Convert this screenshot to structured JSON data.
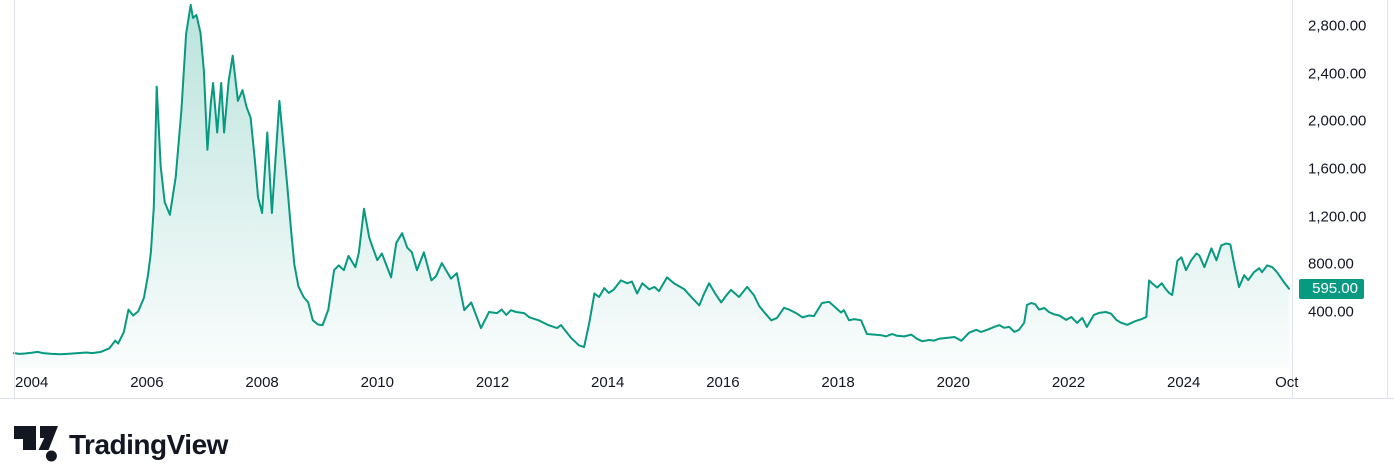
{
  "chart_data": {
    "type": "area",
    "title": "",
    "xlabel": "",
    "ylabel": "",
    "legend": "none",
    "grid": "off",
    "line_color": "#089981",
    "fill_top": "rgba(8,153,129,0.28)",
    "fill_bottom": "rgba(8,153,129,0.02)",
    "x_domain": [
      2003.45,
      2025.88
    ],
    "y_domain": [
      -70,
      3016
    ],
    "x_ticks": [
      {
        "label": "2004",
        "t": 2004
      },
      {
        "label": "2006",
        "t": 2006
      },
      {
        "label": "2008",
        "t": 2008
      },
      {
        "label": "2010",
        "t": 2010
      },
      {
        "label": "2012",
        "t": 2012
      },
      {
        "label": "2014",
        "t": 2014
      },
      {
        "label": "2016",
        "t": 2016
      },
      {
        "label": "2018",
        "t": 2018
      },
      {
        "label": "2020",
        "t": 2020
      },
      {
        "label": "2022",
        "t": 2022
      },
      {
        "label": "2024",
        "t": 2024
      },
      {
        "label": "Oct",
        "t": 2025.79
      }
    ],
    "y_ticks": [
      {
        "label": "2,800.00",
        "v": 2800
      },
      {
        "label": "2,400.00",
        "v": 2400
      },
      {
        "label": "2,000.00",
        "v": 2000
      },
      {
        "label": "1,600.00",
        "v": 1600
      },
      {
        "label": "1,200.00",
        "v": 1200
      },
      {
        "label": "800.00",
        "v": 800
      },
      {
        "label": "400.00",
        "v": 400
      }
    ],
    "last_price": 595,
    "last_price_label": "595.00",
    "series": [
      {
        "name": "price",
        "points": [
          [
            2003.69,
            55
          ],
          [
            2003.79,
            48
          ],
          [
            2003.88,
            52
          ],
          [
            2004.0,
            58
          ],
          [
            2004.1,
            65
          ],
          [
            2004.2,
            55
          ],
          [
            2004.35,
            48
          ],
          [
            2004.5,
            45
          ],
          [
            2004.65,
            50
          ],
          [
            2004.8,
            55
          ],
          [
            2004.95,
            60
          ],
          [
            2005.05,
            55
          ],
          [
            2005.2,
            65
          ],
          [
            2005.35,
            95
          ],
          [
            2005.45,
            160
          ],
          [
            2005.5,
            135
          ],
          [
            2005.6,
            230
          ],
          [
            2005.68,
            420
          ],
          [
            2005.76,
            370
          ],
          [
            2005.85,
            405
          ],
          [
            2005.95,
            520
          ],
          [
            2006.02,
            710
          ],
          [
            2006.07,
            900
          ],
          [
            2006.12,
            1280
          ],
          [
            2006.17,
            2290
          ],
          [
            2006.24,
            1620
          ],
          [
            2006.31,
            1320
          ],
          [
            2006.4,
            1215
          ],
          [
            2006.5,
            1530
          ],
          [
            2006.6,
            2090
          ],
          [
            2006.68,
            2730
          ],
          [
            2006.76,
            2975
          ],
          [
            2006.8,
            2865
          ],
          [
            2006.86,
            2890
          ],
          [
            2006.93,
            2740
          ],
          [
            2006.99,
            2420
          ],
          [
            2007.05,
            1760
          ],
          [
            2007.11,
            2150
          ],
          [
            2007.15,
            2320
          ],
          [
            2007.22,
            1905
          ],
          [
            2007.29,
            2320
          ],
          [
            2007.34,
            1905
          ],
          [
            2007.42,
            2340
          ],
          [
            2007.49,
            2550
          ],
          [
            2007.58,
            2170
          ],
          [
            2007.66,
            2260
          ],
          [
            2007.73,
            2120
          ],
          [
            2007.8,
            2030
          ],
          [
            2007.87,
            1695
          ],
          [
            2007.93,
            1360
          ],
          [
            2008.0,
            1230
          ],
          [
            2008.09,
            1905
          ],
          [
            2008.17,
            1230
          ],
          [
            2008.3,
            2170
          ],
          [
            2008.38,
            1755
          ],
          [
            2008.44,
            1445
          ],
          [
            2008.5,
            1100
          ],
          [
            2008.56,
            800
          ],
          [
            2008.63,
            615
          ],
          [
            2008.72,
            525
          ],
          [
            2008.8,
            480
          ],
          [
            2008.88,
            330
          ],
          [
            2008.97,
            295
          ],
          [
            2009.05,
            290
          ],
          [
            2009.15,
            420
          ],
          [
            2009.25,
            750
          ],
          [
            2009.33,
            790
          ],
          [
            2009.42,
            750
          ],
          [
            2009.5,
            870
          ],
          [
            2009.62,
            775
          ],
          [
            2009.68,
            900
          ],
          [
            2009.77,
            1265
          ],
          [
            2009.86,
            1025
          ],
          [
            2009.92,
            940
          ],
          [
            2010.0,
            835
          ],
          [
            2010.08,
            890
          ],
          [
            2010.24,
            690
          ],
          [
            2010.33,
            980
          ],
          [
            2010.43,
            1060
          ],
          [
            2010.52,
            940
          ],
          [
            2010.6,
            900
          ],
          [
            2010.69,
            750
          ],
          [
            2010.81,
            900
          ],
          [
            2010.94,
            665
          ],
          [
            2011.02,
            700
          ],
          [
            2011.12,
            810
          ],
          [
            2011.28,
            680
          ],
          [
            2011.38,
            725
          ],
          [
            2011.51,
            415
          ],
          [
            2011.63,
            480
          ],
          [
            2011.8,
            265
          ],
          [
            2011.94,
            400
          ],
          [
            2012.08,
            390
          ],
          [
            2012.16,
            420
          ],
          [
            2012.24,
            375
          ],
          [
            2012.32,
            415
          ],
          [
            2012.41,
            400
          ],
          [
            2012.55,
            390
          ],
          [
            2012.64,
            355
          ],
          [
            2012.8,
            330
          ],
          [
            2012.97,
            290
          ],
          [
            2013.12,
            265
          ],
          [
            2013.19,
            290
          ],
          [
            2013.37,
            180
          ],
          [
            2013.5,
            120
          ],
          [
            2013.59,
            105
          ],
          [
            2013.68,
            310
          ],
          [
            2013.77,
            555
          ],
          [
            2013.85,
            525
          ],
          [
            2013.94,
            600
          ],
          [
            2014.02,
            560
          ],
          [
            2014.11,
            590
          ],
          [
            2014.23,
            665
          ],
          [
            2014.34,
            640
          ],
          [
            2014.42,
            655
          ],
          [
            2014.51,
            555
          ],
          [
            2014.6,
            640
          ],
          [
            2014.72,
            590
          ],
          [
            2014.81,
            610
          ],
          [
            2014.89,
            575
          ],
          [
            2015.03,
            690
          ],
          [
            2015.15,
            640
          ],
          [
            2015.33,
            590
          ],
          [
            2015.46,
            520
          ],
          [
            2015.59,
            455
          ],
          [
            2015.67,
            550
          ],
          [
            2015.76,
            640
          ],
          [
            2015.86,
            560
          ],
          [
            2015.97,
            480
          ],
          [
            2016.06,
            540
          ],
          [
            2016.14,
            585
          ],
          [
            2016.28,
            525
          ],
          [
            2016.42,
            610
          ],
          [
            2016.54,
            540
          ],
          [
            2016.63,
            450
          ],
          [
            2016.73,
            390
          ],
          [
            2016.84,
            330
          ],
          [
            2016.94,
            350
          ],
          [
            2017.06,
            435
          ],
          [
            2017.15,
            420
          ],
          [
            2017.27,
            390
          ],
          [
            2017.38,
            355
          ],
          [
            2017.5,
            370
          ],
          [
            2017.58,
            365
          ],
          [
            2017.72,
            475
          ],
          [
            2017.84,
            485
          ],
          [
            2017.95,
            440
          ],
          [
            2018.05,
            395
          ],
          [
            2018.1,
            415
          ],
          [
            2018.19,
            330
          ],
          [
            2018.28,
            340
          ],
          [
            2018.4,
            330
          ],
          [
            2018.5,
            215
          ],
          [
            2018.63,
            210
          ],
          [
            2018.75,
            205
          ],
          [
            2018.83,
            195
          ],
          [
            2018.94,
            215
          ],
          [
            2019.02,
            200
          ],
          [
            2019.15,
            195
          ],
          [
            2019.27,
            210
          ],
          [
            2019.37,
            175
          ],
          [
            2019.46,
            155
          ],
          [
            2019.58,
            165
          ],
          [
            2019.67,
            160
          ],
          [
            2019.75,
            175
          ],
          [
            2019.93,
            185
          ],
          [
            2020.02,
            190
          ],
          [
            2020.14,
            158
          ],
          [
            2020.27,
            225
          ],
          [
            2020.4,
            250
          ],
          [
            2020.48,
            233
          ],
          [
            2020.59,
            250
          ],
          [
            2020.71,
            275
          ],
          [
            2020.8,
            290
          ],
          [
            2020.88,
            267
          ],
          [
            2020.97,
            275
          ],
          [
            2021.06,
            233
          ],
          [
            2021.14,
            250
          ],
          [
            2021.23,
            310
          ],
          [
            2021.28,
            458
          ],
          [
            2021.35,
            475
          ],
          [
            2021.42,
            465
          ],
          [
            2021.49,
            420
          ],
          [
            2021.58,
            433
          ],
          [
            2021.66,
            400
          ],
          [
            2021.75,
            380
          ],
          [
            2021.84,
            370
          ],
          [
            2021.96,
            333
          ],
          [
            2022.05,
            358
          ],
          [
            2022.15,
            308
          ],
          [
            2022.24,
            350
          ],
          [
            2022.32,
            275
          ],
          [
            2022.44,
            375
          ],
          [
            2022.53,
            392
          ],
          [
            2022.65,
            400
          ],
          [
            2022.74,
            385
          ],
          [
            2022.83,
            333
          ],
          [
            2022.91,
            310
          ],
          [
            2023.02,
            292
          ],
          [
            2023.1,
            310
          ],
          [
            2023.17,
            325
          ],
          [
            2023.28,
            342
          ],
          [
            2023.35,
            358
          ],
          [
            2023.4,
            665
          ],
          [
            2023.45,
            640
          ],
          [
            2023.54,
            605
          ],
          [
            2023.62,
            640
          ],
          [
            2023.69,
            590
          ],
          [
            2023.75,
            558
          ],
          [
            2023.8,
            542
          ],
          [
            2023.89,
            830
          ],
          [
            2023.96,
            858
          ],
          [
            2024.04,
            750
          ],
          [
            2024.13,
            833
          ],
          [
            2024.22,
            890
          ],
          [
            2024.27,
            875
          ],
          [
            2024.36,
            775
          ],
          [
            2024.48,
            933
          ],
          [
            2024.57,
            833
          ],
          [
            2024.65,
            958
          ],
          [
            2024.74,
            975
          ],
          [
            2024.81,
            965
          ],
          [
            2024.88,
            790
          ],
          [
            2024.96,
            608
          ],
          [
            2025.05,
            708
          ],
          [
            2025.12,
            667
          ],
          [
            2025.22,
            733
          ],
          [
            2025.31,
            767
          ],
          [
            2025.36,
            733
          ],
          [
            2025.45,
            790
          ],
          [
            2025.54,
            775
          ],
          [
            2025.62,
            733
          ],
          [
            2025.74,
            650
          ],
          [
            2025.83,
            595
          ]
        ]
      }
    ]
  },
  "price_scale": {
    "badge_label": "595.00",
    "badge_color": "#089981",
    "badge_text_color": "#ffffff"
  },
  "colors": {
    "text": "#131722",
    "border": "#e0e3eb"
  },
  "footer": {
    "brand": "TradingView"
  }
}
